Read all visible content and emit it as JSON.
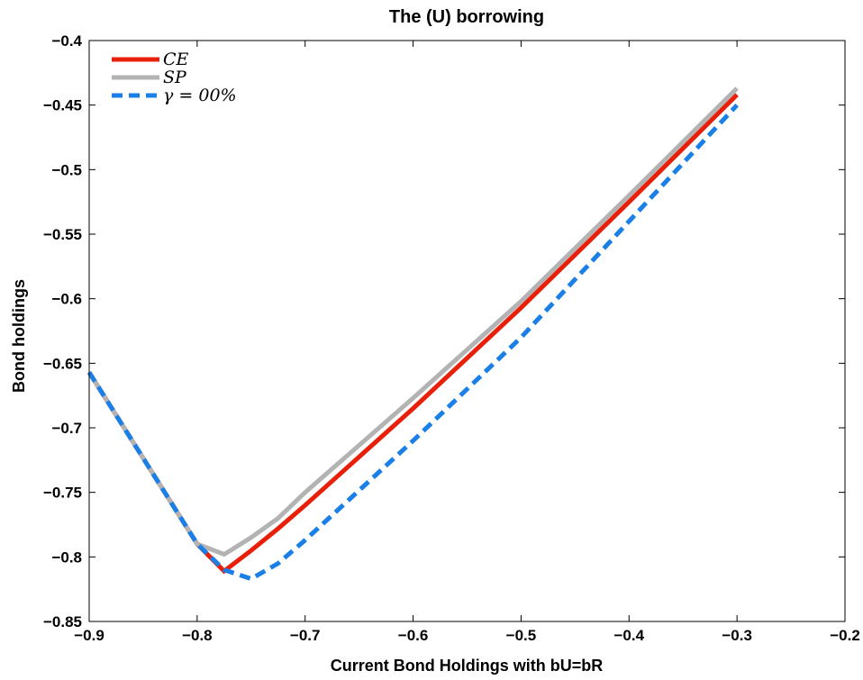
{
  "chart_data": {
    "type": "line",
    "title": "The (U) borrowing",
    "xlabel": "Current Bond Holdings with bU=bR",
    "ylabel": "Bond holdings",
    "xlim": [
      -0.9,
      -0.2
    ],
    "ylim": [
      -0.85,
      -0.4
    ],
    "xticks": [
      "−0.9",
      "−0.8",
      "−0.7",
      "−0.6",
      "−0.5",
      "−0.4",
      "−0.3",
      "−0.2"
    ],
    "yticks": [
      "−0.4",
      "−0.45",
      "−0.5",
      "−0.55",
      "−0.6",
      "−0.65",
      "−0.7",
      "−0.75",
      "−0.8",
      "−0.85"
    ],
    "xtick_values": [
      -0.9,
      -0.8,
      -0.7,
      -0.6,
      -0.5,
      -0.4,
      -0.3,
      -0.2
    ],
    "ytick_values": [
      -0.4,
      -0.45,
      -0.5,
      -0.55,
      -0.6,
      -0.65,
      -0.7,
      -0.75,
      -0.8,
      -0.85
    ],
    "grid": false,
    "legend_position": "top-left",
    "series": [
      {
        "name": "CE",
        "color": "#e8200a",
        "style": "solid",
        "x": [
          -0.9,
          -0.8,
          -0.775,
          -0.75,
          -0.725,
          -0.7,
          -0.6,
          -0.5,
          -0.4,
          -0.3
        ],
        "y": [
          -0.657,
          -0.79,
          -0.811,
          -0.795,
          -0.778,
          -0.76,
          -0.685,
          -0.607,
          -0.525,
          -0.442
        ]
      },
      {
        "name": "SP",
        "color": "#b3b3b3",
        "style": "solid",
        "x": [
          -0.9,
          -0.8,
          -0.775,
          -0.75,
          -0.725,
          -0.7,
          -0.6,
          -0.5,
          -0.4,
          -0.3
        ],
        "y": [
          -0.657,
          -0.79,
          -0.798,
          -0.785,
          -0.77,
          -0.75,
          -0.677,
          -0.602,
          -0.52,
          -0.437
        ]
      },
      {
        "name": "γ = 00%",
        "color": "#1a7fe6",
        "style": "dashed",
        "x": [
          -0.9,
          -0.8,
          -0.775,
          -0.75,
          -0.725,
          -0.7,
          -0.6,
          -0.5,
          -0.4,
          -0.3
        ],
        "y": [
          -0.657,
          -0.79,
          -0.81,
          -0.817,
          -0.805,
          -0.787,
          -0.71,
          -0.63,
          -0.54,
          -0.45
        ]
      }
    ]
  }
}
